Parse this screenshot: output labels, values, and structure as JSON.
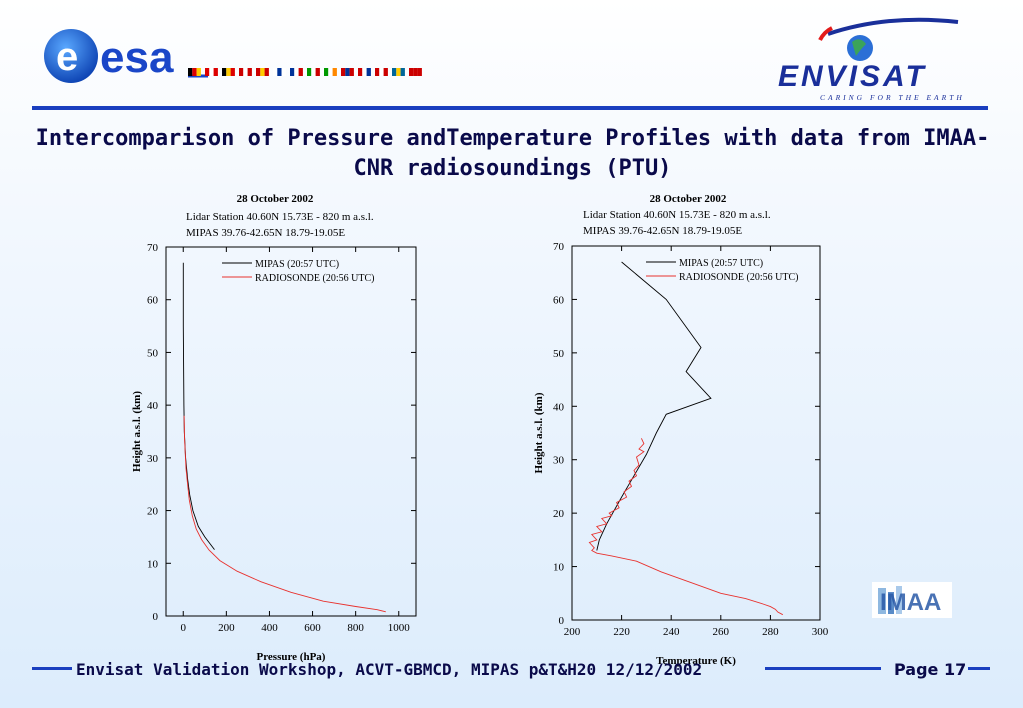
{
  "header": {
    "esa_logo_text": "esa",
    "envisat_logo_text": "ENVISAT",
    "envisat_tagline": "CARING FOR THE EARTH"
  },
  "slide_title": "Intercomparison of Pressure andTemperature Profiles with data from IMAA-CNR radiosoundings (PTU)",
  "imaa_logo_text": "IMAA",
  "footer": {
    "text": "Envisat Validation Workshop, ACVT-GBMCD,  MIPAS p&T&H20 12/12/2002",
    "page_label": "Page 17"
  },
  "colors": {
    "accent_blue": "#1a3fbf",
    "mipas_line": "#000000",
    "radiosonde_line": "#e8322e"
  },
  "chart_data": [
    {
      "type": "line",
      "title": "28 October 2002",
      "subtitle_lines": [
        "Lidar Station 40.60N 15.73E - 820 m a.s.l.",
        "MIPAS 39.76-42.65N 18.79-19.05E"
      ],
      "xlabel": "Pressure (hPa)",
      "ylabel": "Height a.s.l. (km)",
      "xlim": [
        -80,
        1080
      ],
      "ylim": [
        0,
        70
      ],
      "xticks": [
        0,
        200,
        400,
        600,
        800,
        1000
      ],
      "yticks": [
        0,
        10,
        20,
        30,
        40,
        50,
        60,
        70
      ],
      "legend_position": "top-right",
      "series": [
        {
          "name": "MIPAS (20:57 UTC)",
          "color": "#000000",
          "points": [
            [
              0.1,
              67
            ],
            [
              0.2,
              60
            ],
            [
              0.5,
              55
            ],
            [
              1,
              50
            ],
            [
              2,
              45
            ],
            [
              3,
              40
            ],
            [
              5,
              35
            ],
            [
              11,
              30
            ],
            [
              20,
              26
            ],
            [
              30,
              23
            ],
            [
              45,
              20
            ],
            [
              70,
              17
            ],
            [
              100,
              15
            ],
            [
              145,
              12.6
            ]
          ]
        },
        {
          "name": "RADIOSONDE (20:56 UTC)",
          "color": "#e8322e",
          "points": [
            [
              4,
              38
            ],
            [
              6,
              34
            ],
            [
              9,
              31
            ],
            [
              13,
              28
            ],
            [
              20,
              25
            ],
            [
              28,
              22
            ],
            [
              42,
              19
            ],
            [
              60,
              16.5
            ],
            [
              85,
              14.5
            ],
            [
              120,
              12.5
            ],
            [
              170,
              10.5
            ],
            [
              250,
              8.5
            ],
            [
              360,
              6.5
            ],
            [
              500,
              4.5
            ],
            [
              650,
              2.8
            ],
            [
              800,
              1.8
            ],
            [
              900,
              1.2
            ],
            [
              940,
              0.8
            ]
          ]
        }
      ]
    },
    {
      "type": "line",
      "title": "28 October 2002",
      "subtitle_lines": [
        "Lidar Station 40.60N 15.73E - 820 m a.s.l.",
        "MIPAS 39.76-42.65N 18.79-19.05E"
      ],
      "xlabel": "Temperature (K)",
      "ylabel": "Height a.s.l. (km)",
      "xlim": [
        200,
        300
      ],
      "ylim": [
        0,
        70
      ],
      "xticks": [
        200,
        220,
        240,
        260,
        280,
        300
      ],
      "yticks": [
        0,
        10,
        20,
        30,
        40,
        50,
        60,
        70
      ],
      "legend_position": "top-right",
      "series": [
        {
          "name": "MIPAS (20:57 UTC)",
          "color": "#000000",
          "points": [
            [
              220,
              67
            ],
            [
              238,
              60
            ],
            [
              252,
              51
            ],
            [
              246,
              46.5
            ],
            [
              256,
              41.5
            ],
            [
              238,
              38.5
            ],
            [
              234,
              35
            ],
            [
              230,
              31
            ],
            [
              225,
              27
            ],
            [
              220,
              23
            ],
            [
              214,
              18
            ],
            [
              211,
              15
            ],
            [
              210,
              13
            ]
          ]
        },
        {
          "name": "RADIOSONDE (20:56 UTC)",
          "color": "#e8322e",
          "points": [
            [
              228,
              34
            ],
            [
              229,
              33
            ],
            [
              227,
              32
            ],
            [
              229,
              31.5
            ],
            [
              226,
              30.5
            ],
            [
              227,
              29
            ],
            [
              225,
              28
            ],
            [
              226,
              27
            ],
            [
              223,
              26
            ],
            [
              224,
              25
            ],
            [
              221,
              24
            ],
            [
              222,
              23
            ],
            [
              218,
              22
            ],
            [
              219,
              21
            ],
            [
              215,
              20
            ],
            [
              216,
              19.5
            ],
            [
              212,
              19
            ],
            [
              214,
              18
            ],
            [
              210,
              17.5
            ],
            [
              212,
              16.5
            ],
            [
              208,
              16
            ],
            [
              210,
              15
            ],
            [
              207,
              14.5
            ],
            [
              209,
              13.5
            ],
            [
              208,
              13
            ],
            [
              210,
              12.5
            ],
            [
              216,
              12
            ],
            [
              226,
              11
            ],
            [
              236,
              9
            ],
            [
              248,
              7
            ],
            [
              260,
              5
            ],
            [
              270,
              4
            ],
            [
              277,
              3
            ],
            [
              280,
              2.5
            ],
            [
              282,
              2
            ],
            [
              283,
              1.5
            ],
            [
              285,
              1
            ]
          ]
        }
      ]
    }
  ]
}
